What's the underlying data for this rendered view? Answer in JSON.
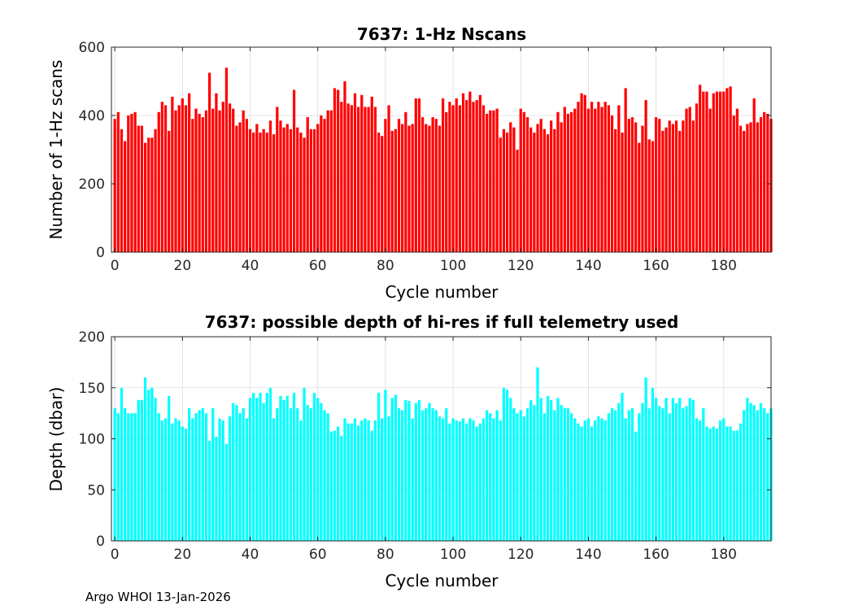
{
  "footer": "Argo WHOI 13-Jan-2026",
  "chart_data": [
    {
      "type": "bar",
      "title": "7637: 1-Hz Nscans",
      "xlabel": "Cycle number",
      "ylabel": "Number of 1-Hz scans",
      "xlim": [
        -1,
        194
      ],
      "ylim": [
        0,
        600
      ],
      "xticks": [
        0,
        20,
        40,
        60,
        80,
        100,
        120,
        140,
        160,
        180
      ],
      "yticks": [
        0,
        200,
        400,
        600
      ],
      "grid": true,
      "color": "#ff0000",
      "x_start": 0,
      "values": [
        390,
        410,
        360,
        325,
        400,
        405,
        410,
        370,
        370,
        320,
        335,
        335,
        360,
        410,
        440,
        430,
        355,
        455,
        415,
        430,
        450,
        430,
        465,
        390,
        420,
        405,
        395,
        415,
        525,
        420,
        465,
        415,
        440,
        540,
        435,
        420,
        370,
        380,
        415,
        390,
        360,
        350,
        375,
        350,
        360,
        350,
        385,
        345,
        425,
        385,
        365,
        375,
        360,
        475,
        365,
        350,
        335,
        395,
        360,
        360,
        375,
        400,
        390,
        415,
        415,
        480,
        475,
        440,
        500,
        435,
        430,
        465,
        425,
        460,
        425,
        425,
        455,
        425,
        350,
        340,
        390,
        430,
        355,
        360,
        390,
        375,
        410,
        370,
        375,
        450,
        450,
        395,
        375,
        370,
        395,
        390,
        370,
        450,
        410,
        440,
        430,
        450,
        430,
        465,
        445,
        470,
        440,
        445,
        460,
        430,
        405,
        415,
        415,
        420,
        335,
        360,
        350,
        380,
        365,
        300,
        420,
        410,
        395,
        365,
        350,
        375,
        390,
        360,
        345,
        385,
        360,
        410,
        380,
        425,
        405,
        410,
        420,
        440,
        465,
        460,
        420,
        440,
        420,
        440,
        425,
        440,
        430,
        400,
        360,
        430,
        350,
        480,
        390,
        395,
        380,
        320,
        370,
        445,
        330,
        325,
        395,
        390,
        355,
        365,
        385,
        375,
        385,
        355,
        385,
        420,
        425,
        385,
        435,
        490,
        470,
        470,
        420,
        465,
        470,
        470,
        470,
        480,
        485,
        400,
        420,
        370,
        355,
        375,
        380,
        450,
        380,
        395,
        410,
        405,
        390
      ]
    },
    {
      "type": "bar",
      "title": "7637: possible depth of hi-res if full telemetry used",
      "xlabel": "Cycle number",
      "ylabel": "Depth (dbar)",
      "xlim": [
        -1,
        194
      ],
      "ylim": [
        0,
        200
      ],
      "xticks": [
        0,
        20,
        40,
        60,
        80,
        100,
        120,
        140,
        160,
        180
      ],
      "yticks": [
        0,
        50,
        100,
        150,
        200
      ],
      "grid": true,
      "color": "#00ffff",
      "x_start": 0,
      "values": [
        130,
        125,
        150,
        130,
        125,
        125,
        125,
        138,
        138,
        160,
        148,
        150,
        140,
        125,
        118,
        120,
        142,
        115,
        120,
        118,
        112,
        110,
        130,
        120,
        125,
        128,
        130,
        125,
        98,
        130,
        102,
        120,
        118,
        95,
        122,
        135,
        133,
        125,
        130,
        120,
        140,
        145,
        140,
        145,
        135,
        145,
        150,
        120,
        130,
        142,
        138,
        142,
        130,
        145,
        130,
        118,
        150,
        133,
        130,
        145,
        140,
        135,
        128,
        125,
        107,
        108,
        112,
        103,
        120,
        115,
        115,
        120,
        113,
        118,
        120,
        118,
        108,
        118,
        145,
        120,
        148,
        122,
        140,
        143,
        130,
        128,
        138,
        137,
        120,
        135,
        138,
        128,
        130,
        135,
        130,
        128,
        122,
        120,
        130,
        115,
        120,
        118,
        117,
        120,
        115,
        120,
        118,
        112,
        115,
        120,
        128,
        125,
        120,
        128,
        118,
        150,
        148,
        140,
        130,
        125,
        128,
        122,
        130,
        138,
        133,
        170,
        140,
        125,
        142,
        138,
        128,
        140,
        133,
        130,
        130,
        125,
        120,
        115,
        112,
        118,
        120,
        112,
        118,
        122,
        120,
        118,
        125,
        130,
        128,
        135,
        145,
        120,
        128,
        130,
        107,
        125,
        135,
        160,
        130,
        150,
        140,
        132,
        130,
        140,
        125,
        140,
        135,
        140,
        130,
        132,
        140,
        138,
        120,
        118,
        130,
        112,
        110,
        112,
        110,
        118,
        120,
        112,
        112,
        108,
        108,
        115,
        128,
        140,
        135,
        133,
        128,
        135,
        130,
        125,
        130
      ]
    }
  ]
}
